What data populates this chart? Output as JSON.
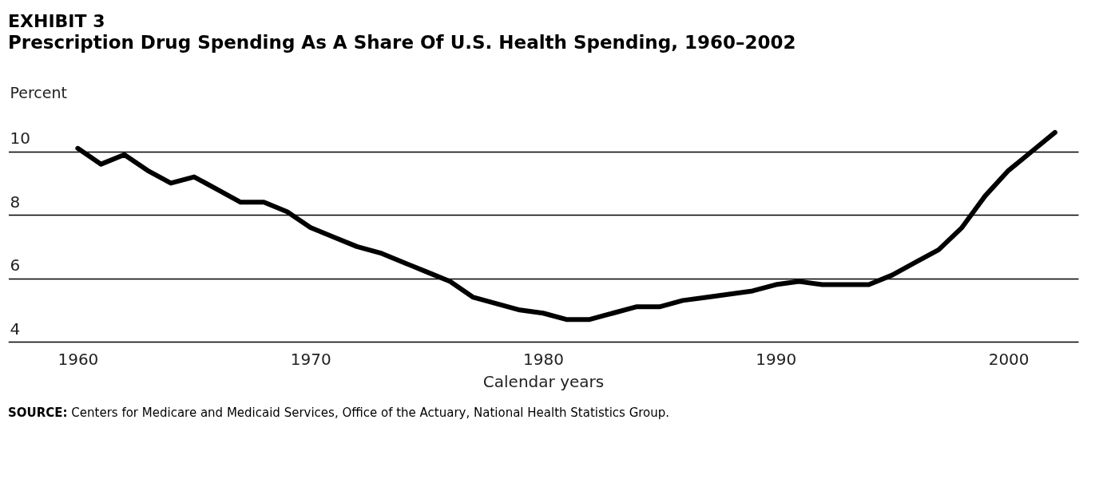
{
  "chart_data": {
    "type": "line",
    "title": "EXHIBIT 3",
    "subtitle": "Prescription Drug Spending As A Share Of U.S. Health Spending, 1960–2002",
    "xlabel": "Calendar years",
    "ylabel": "Percent",
    "annotations": [
      "SOURCE: Centers for Medicare and Medicaid Services, Office of the Actuary, National Health Statistics Group."
    ],
    "x": [
      1960,
      1961,
      1962,
      1963,
      1964,
      1965,
      1966,
      1967,
      1968,
      1969,
      1970,
      1971,
      1972,
      1973,
      1974,
      1975,
      1976,
      1977,
      1978,
      1979,
      1980,
      1981,
      1982,
      1983,
      1984,
      1985,
      1986,
      1987,
      1988,
      1989,
      1990,
      1991,
      1992,
      1993,
      1994,
      1995,
      1996,
      1997,
      1998,
      1999,
      2000,
      2001,
      2002
    ],
    "series": [
      {
        "color": "#000000",
        "values": [
          10.1,
          9.6,
          9.9,
          9.4,
          9.0,
          9.2,
          8.8,
          8.4,
          8.4,
          8.1,
          7.6,
          7.3,
          7.0,
          6.8,
          6.5,
          6.2,
          5.9,
          5.4,
          5.2,
          5.0,
          4.9,
          4.7,
          4.7,
          4.9,
          5.1,
          5.1,
          5.3,
          5.4,
          5.5,
          5.6,
          5.8,
          5.9,
          5.8,
          5.8,
          5.8,
          6.1,
          6.5,
          6.9,
          7.6,
          8.6,
          9.4,
          10.0,
          10.6
        ]
      }
    ],
    "xlim": [
      1957,
      2003
    ],
    "ylim": [
      4,
      10.8
    ],
    "xticks": [
      1960,
      1970,
      1980,
      1990,
      2000
    ],
    "yticks": [
      4,
      6,
      8,
      10
    ],
    "grid": "y",
    "line_style": "solid"
  }
}
